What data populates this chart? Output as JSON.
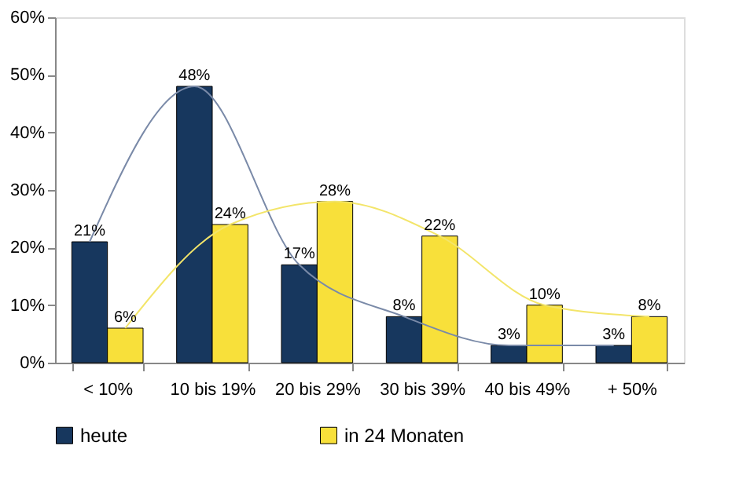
{
  "chart_data": {
    "type": "bar",
    "categories": [
      "< 10%",
      "10 bis 19%",
      "20 bis 29%",
      "30 bis 39%",
      "40 bis 49%",
      "+ 50%"
    ],
    "ylim": [
      0,
      60
    ],
    "yticks": [
      {
        "value": 0,
        "label": "0%"
      },
      {
        "value": 10,
        "label": "10%"
      },
      {
        "value": 20,
        "label": "20%"
      },
      {
        "value": 30,
        "label": "30%"
      },
      {
        "value": 40,
        "label": "40%"
      },
      {
        "value": 50,
        "label": "50%"
      },
      {
        "value": 60,
        "label": "60%"
      }
    ],
    "grid": false,
    "legend": "bottom",
    "series": [
      {
        "name": "heute",
        "color": "#17375e",
        "values": [
          21,
          48,
          17,
          8,
          3,
          3
        ],
        "value_labels": [
          "21%",
          "48%",
          "17%",
          "8%",
          "3%",
          "3%"
        ]
      },
      {
        "name": "in 24 Monaten",
        "color": "#f8e03a",
        "values": [
          6,
          24,
          28,
          22,
          10,
          8
        ],
        "value_labels": [
          "6%",
          "24%",
          "28%",
          "22%",
          "10%",
          "8%"
        ]
      },
      {
        "type": "line",
        "color": "#7a8aa8",
        "values": [
          21,
          48,
          17,
          8,
          3,
          3
        ]
      },
      {
        "type": "line",
        "color": "#f3e56a",
        "values": [
          6,
          24,
          28,
          22,
          10,
          8
        ]
      }
    ]
  }
}
